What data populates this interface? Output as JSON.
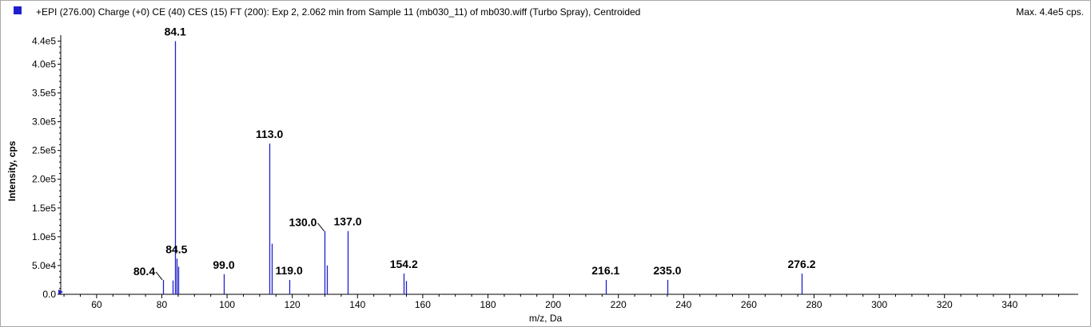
{
  "header": {
    "title": "+EPI (276.00) Charge (+0) CE (40) CES (15) FT (200): Exp 2, 2.062 min from Sample 11 (mb030_11) of mb030.wiff (Turbo Spray), Centroided",
    "max_label": "Max. 4.4e5 cps."
  },
  "colors": {
    "series": "#1f1fcf"
  },
  "chart_data": {
    "type": "bar",
    "xlabel": "m/z, Da",
    "ylabel": "Intensity, cps",
    "xlim": [
      49,
      361
    ],
    "ylim": [
      0,
      445000
    ],
    "xticks": [
      60,
      80,
      100,
      120,
      140,
      160,
      180,
      200,
      220,
      240,
      260,
      280,
      300,
      320,
      340
    ],
    "xtick_labels": [
      "60",
      "80",
      "100",
      "120",
      "140",
      "160",
      "180",
      "200",
      "220",
      "240",
      "260",
      "280",
      "300",
      "320",
      "340"
    ],
    "yticks": [
      0,
      50000,
      100000,
      150000,
      200000,
      250000,
      300000,
      350000,
      400000,
      440000
    ],
    "ytick_labels": [
      "0.0",
      "5.0e4",
      "1.0e5",
      "1.5e5",
      "2.0e5",
      "2.5e5",
      "3.0e5",
      "3.5e5",
      "4.0e5",
      "4.4e5"
    ],
    "peaks": [
      {
        "x": 80.4,
        "y": 25000
      },
      {
        "x": 83.2,
        "y": 24000
      },
      {
        "x": 84.1,
        "y": 440000
      },
      {
        "x": 84.5,
        "y": 62000
      },
      {
        "x": 85.0,
        "y": 48000
      },
      {
        "x": 99.0,
        "y": 35000
      },
      {
        "x": 113.0,
        "y": 262000
      },
      {
        "x": 113.8,
        "y": 88000
      },
      {
        "x": 119.0,
        "y": 25000
      },
      {
        "x": 130.0,
        "y": 110000
      },
      {
        "x": 130.5,
        "y": 50000
      },
      {
        "x": 137.0,
        "y": 110000
      },
      {
        "x": 154.2,
        "y": 36000
      },
      {
        "x": 154.9,
        "y": 23000
      },
      {
        "x": 216.1,
        "y": 25000
      },
      {
        "x": 235.0,
        "y": 25000
      },
      {
        "x": 276.2,
        "y": 36000
      }
    ],
    "annotations": [
      {
        "text": "84.1",
        "x": 84.1,
        "y": 440000,
        "align": "center"
      },
      {
        "text": "113.0",
        "x": 113.0,
        "y": 262000,
        "align": "center"
      },
      {
        "text": "130.0",
        "x": 130.0,
        "y": 110000,
        "align": "left-leader"
      },
      {
        "text": "137.0",
        "x": 137.0,
        "y": 110000,
        "align": "center"
      },
      {
        "text": "84.5",
        "x": 84.5,
        "y": 62000,
        "align": "center"
      },
      {
        "text": "80.4",
        "x": 80.4,
        "y": 25000,
        "align": "left-leader"
      },
      {
        "text": "99.0",
        "x": 99.0,
        "y": 35000,
        "align": "center"
      },
      {
        "text": "119.0",
        "x": 119.0,
        "y": 25000,
        "align": "center"
      },
      {
        "text": "154.2",
        "x": 154.2,
        "y": 36000,
        "align": "center"
      },
      {
        "text": "216.1",
        "x": 216.1,
        "y": 25000,
        "align": "center"
      },
      {
        "text": "235.0",
        "x": 235.0,
        "y": 25000,
        "align": "center"
      },
      {
        "text": "276.2",
        "x": 276.2,
        "y": 36000,
        "align": "center"
      }
    ]
  }
}
